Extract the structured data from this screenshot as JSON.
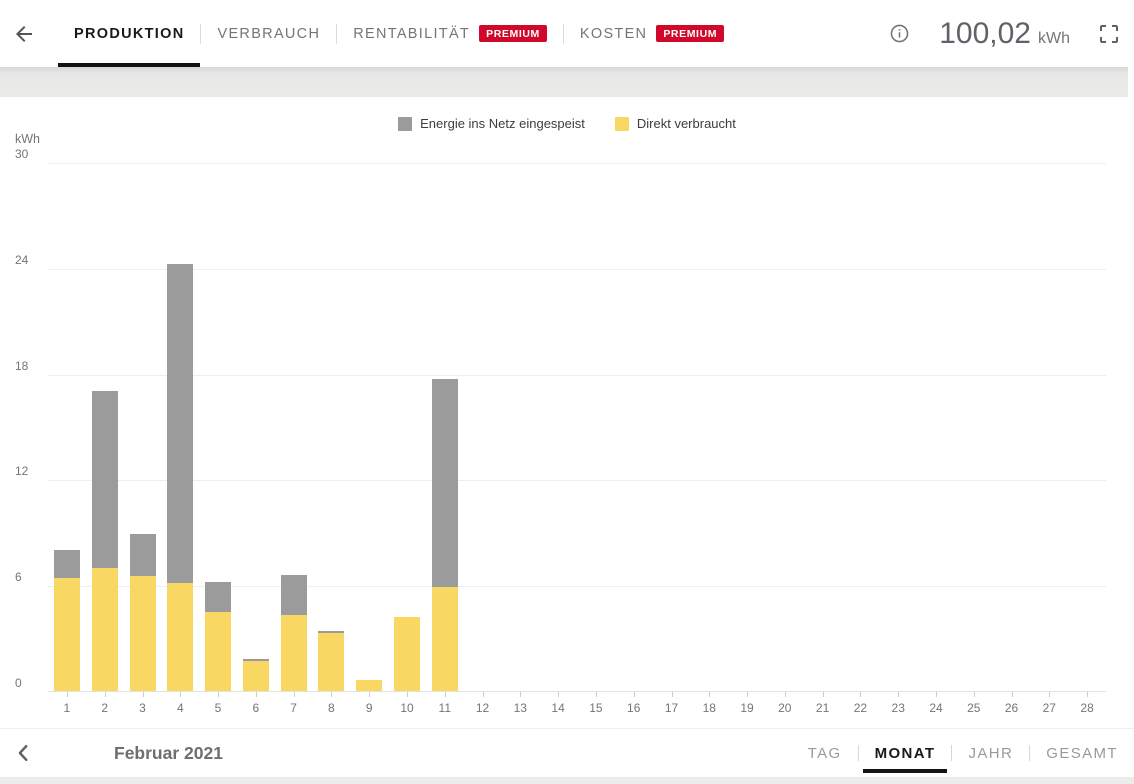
{
  "header": {
    "back_icon": "arrow-left",
    "tabs": [
      {
        "label": "PRODUKTION",
        "active": true,
        "premium": false
      },
      {
        "label": "VERBRAUCH",
        "active": false,
        "premium": false
      },
      {
        "label": "RENTABILITÄT",
        "active": false,
        "premium": true
      },
      {
        "label": "KOSTEN",
        "active": false,
        "premium": true
      }
    ],
    "premium_label": "PREMIUM",
    "info_icon": "info-circle",
    "total": {
      "value": "100,02",
      "unit": "kWh"
    },
    "fullscreen_icon": "fullscreen-corners"
  },
  "legend": {
    "items": [
      {
        "label": "Energie ins Netz eingespeist",
        "color": "#9b9b9b"
      },
      {
        "label": "Direkt verbraucht",
        "color": "#f8d763"
      }
    ]
  },
  "chart_data": {
    "type": "bar",
    "stacked": true,
    "title": "",
    "xlabel": "",
    "ylabel": "kWh",
    "ylim": [
      0,
      30
    ],
    "yticks": [
      0,
      6,
      12,
      18,
      24,
      30
    ],
    "grid": true,
    "legend_position": "top",
    "categories": [
      1,
      2,
      3,
      4,
      5,
      6,
      7,
      8,
      9,
      10,
      11,
      12,
      13,
      14,
      15,
      16,
      17,
      18,
      19,
      20,
      21,
      22,
      23,
      24,
      25,
      26,
      27,
      28
    ],
    "series": [
      {
        "name": "Energie ins Netz eingespeist",
        "color": "#9b9b9b",
        "values": [
          1.6,
          10.0,
          2.4,
          18.1,
          1.7,
          0.1,
          2.3,
          0.1,
          0,
          0,
          11.8,
          0,
          0,
          0,
          0,
          0,
          0,
          0,
          0,
          0,
          0,
          0,
          0,
          0,
          0,
          0,
          0,
          0
        ]
      },
      {
        "name": "Direkt verbraucht",
        "color": "#f8d763",
        "values": [
          6.4,
          7.0,
          6.5,
          6.1,
          4.5,
          1.7,
          4.3,
          3.3,
          0.6,
          4.2,
          5.9,
          0,
          0,
          0,
          0,
          0,
          0,
          0,
          0,
          0,
          0,
          0,
          0,
          0,
          0,
          0,
          0,
          0
        ]
      }
    ]
  },
  "footer": {
    "prev_icon": "chevron-left",
    "period_label": "Februar 2021",
    "range_tabs": [
      {
        "label": "TAG",
        "active": false
      },
      {
        "label": "MONAT",
        "active": true
      },
      {
        "label": "JAHR",
        "active": false
      },
      {
        "label": "GESAMT",
        "active": false
      }
    ]
  },
  "colors": {
    "accent_premium": "#d0092b",
    "bar_grid_feed": "#9b9b9b",
    "bar_direct_use": "#f8d763",
    "active_tab_underline": "#141414"
  }
}
